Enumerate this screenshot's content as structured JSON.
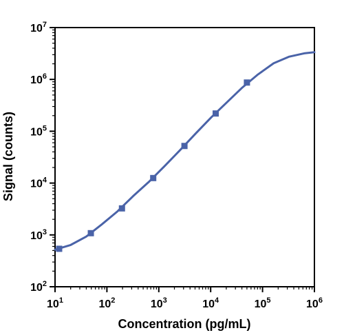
{
  "chart_data": {
    "type": "line",
    "title": "",
    "xlabel": "Concentration (pg/mL)",
    "ylabel": "Signal (counts)",
    "x_scale": "log",
    "y_scale": "log",
    "xlim": [
      10,
      1000000
    ],
    "ylim": [
      100,
      10000000
    ],
    "grid": false,
    "legend": "none",
    "x_ticks": [
      {
        "value": 10,
        "base": "10",
        "exp": "1"
      },
      {
        "value": 100,
        "base": "10",
        "exp": "2"
      },
      {
        "value": 1000,
        "base": "10",
        "exp": "3"
      },
      {
        "value": 10000,
        "base": "10",
        "exp": "4"
      },
      {
        "value": 100000,
        "base": "10",
        "exp": "5"
      },
      {
        "value": 1000000,
        "base": "10",
        "exp": "6"
      }
    ],
    "y_ticks": [
      {
        "value": 100,
        "base": "10",
        "exp": "2"
      },
      {
        "value": 1000,
        "base": "10",
        "exp": "3"
      },
      {
        "value": 10000,
        "base": "10",
        "exp": "4"
      },
      {
        "value": 100000,
        "base": "10",
        "exp": "5"
      },
      {
        "value": 1000000,
        "base": "10",
        "exp": "6"
      },
      {
        "value": 10000000,
        "base": "10",
        "exp": "7"
      }
    ],
    "series": [
      {
        "color": "#4a63a8",
        "points": [
          {
            "x": 12,
            "y": 540
          },
          {
            "x": 49,
            "y": 1080
          },
          {
            "x": 195,
            "y": 3250
          },
          {
            "x": 781,
            "y": 12500
          },
          {
            "x": 3125,
            "y": 52000
          },
          {
            "x": 12500,
            "y": 220000
          },
          {
            "x": 50000,
            "y": 870000
          }
        ],
        "fit_curve": [
          {
            "x": 10,
            "y": 520
          },
          {
            "x": 20,
            "y": 640
          },
          {
            "x": 40,
            "y": 930
          },
          {
            "x": 80,
            "y": 1600
          },
          {
            "x": 160,
            "y": 2850
          },
          {
            "x": 320,
            "y": 5600
          },
          {
            "x": 640,
            "y": 10500
          },
          {
            "x": 1280,
            "y": 21000
          },
          {
            "x": 2560,
            "y": 43000
          },
          {
            "x": 5120,
            "y": 90000
          },
          {
            "x": 10240,
            "y": 185000
          },
          {
            "x": 20480,
            "y": 360000
          },
          {
            "x": 40960,
            "y": 700000
          },
          {
            "x": 81920,
            "y": 1250000
          },
          {
            "x": 163840,
            "y": 2050000
          },
          {
            "x": 327680,
            "y": 2750000
          },
          {
            "x": 655360,
            "y": 3200000
          },
          {
            "x": 1000000,
            "y": 3350000
          }
        ]
      }
    ]
  }
}
